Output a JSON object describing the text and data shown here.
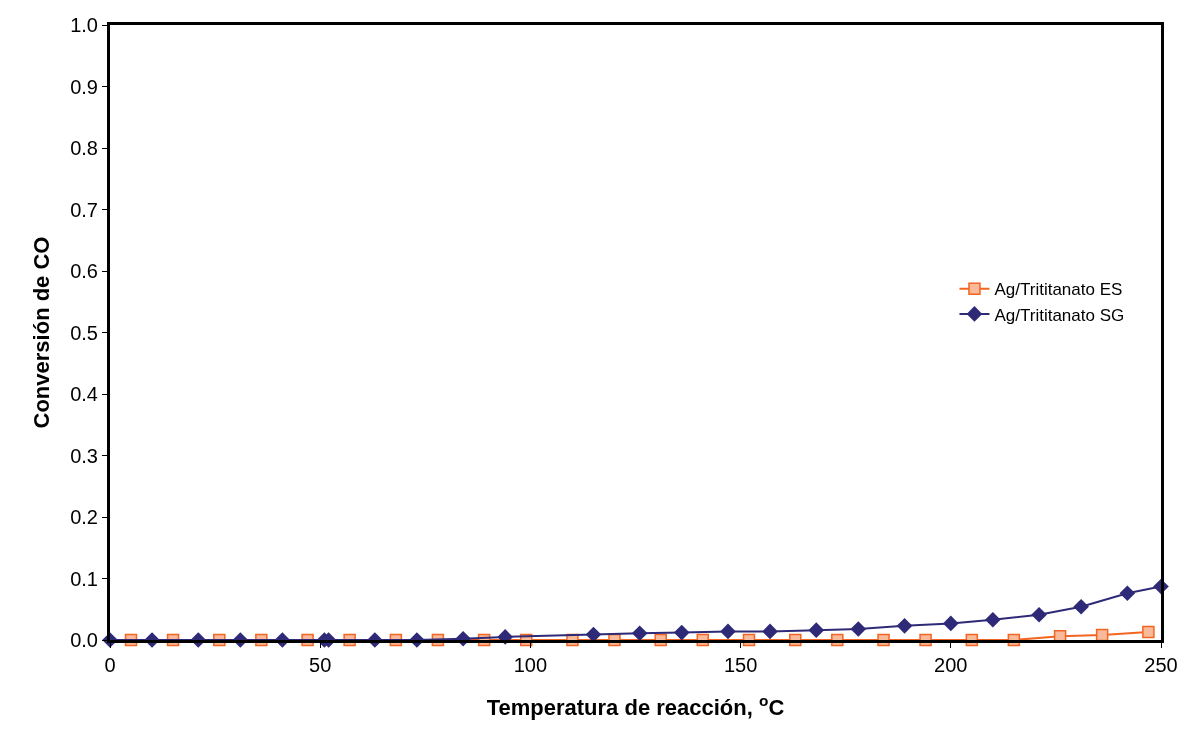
{
  "chart_data": {
    "type": "line",
    "xlabel": "Temperatura de reacción, $^{o}$C",
    "ylabel": "Conversión de CO",
    "xlim": [
      0,
      250
    ],
    "xticks": [
      0,
      50,
      100,
      150,
      200,
      250
    ],
    "ylim": [
      0,
      1
    ],
    "yticks": [
      {
        "value": 0,
        "label": "0.0"
      },
      {
        "value": 0.1,
        "label": "0.1"
      },
      {
        "value": 0.2,
        "label": "0.2"
      },
      {
        "value": 0.3,
        "label": "0.3"
      },
      {
        "value": 0.4,
        "label": "0.4"
      },
      {
        "value": 0.5,
        "label": "0.5"
      },
      {
        "value": 0.6,
        "label": "0.6"
      },
      {
        "value": 0.7,
        "label": "0.7"
      },
      {
        "value": 0.8,
        "label": "0.8"
      },
      {
        "value": 0.9,
        "label": "0.9"
      },
      {
        "value": 1,
        "label": "1.0"
      }
    ],
    "legend": "right",
    "series": [
      {
        "name": "Ag/Trititanato ES",
        "color": "#f26522",
        "marker": "square",
        "x": [
          5,
          15,
          26,
          36,
          47,
          57,
          68,
          78,
          89,
          99,
          110,
          120,
          131,
          141,
          152,
          163,
          173,
          184,
          194,
          205,
          215,
          226,
          236,
          247
        ],
        "values": [
          0,
          0,
          0,
          0,
          0,
          0,
          0,
          0,
          0,
          0,
          0,
          0,
          0,
          0,
          0,
          0,
          0,
          0,
          0,
          0,
          0,
          0.006,
          0.008,
          0.013
        ]
      },
      {
        "name": "Ag/Trititanato SG",
        "color": "#2e2a78",
        "marker": "diamond",
        "x": [
          0,
          10,
          21,
          31,
          41,
          51,
          52,
          63,
          73,
          84,
          94,
          115,
          126,
          136,
          147,
          157,
          168,
          178,
          189,
          200,
          210,
          221,
          231,
          242,
          250
        ],
        "values": [
          0,
          0,
          0,
          0,
          0,
          0,
          0,
          0,
          0,
          0.002,
          0.005,
          0.009,
          0.011,
          0.012,
          0.014,
          0.014,
          0.016,
          0.018,
          0.023,
          0.027,
          0.033,
          0.041,
          0.054,
          0.076,
          0.087
        ]
      }
    ]
  }
}
